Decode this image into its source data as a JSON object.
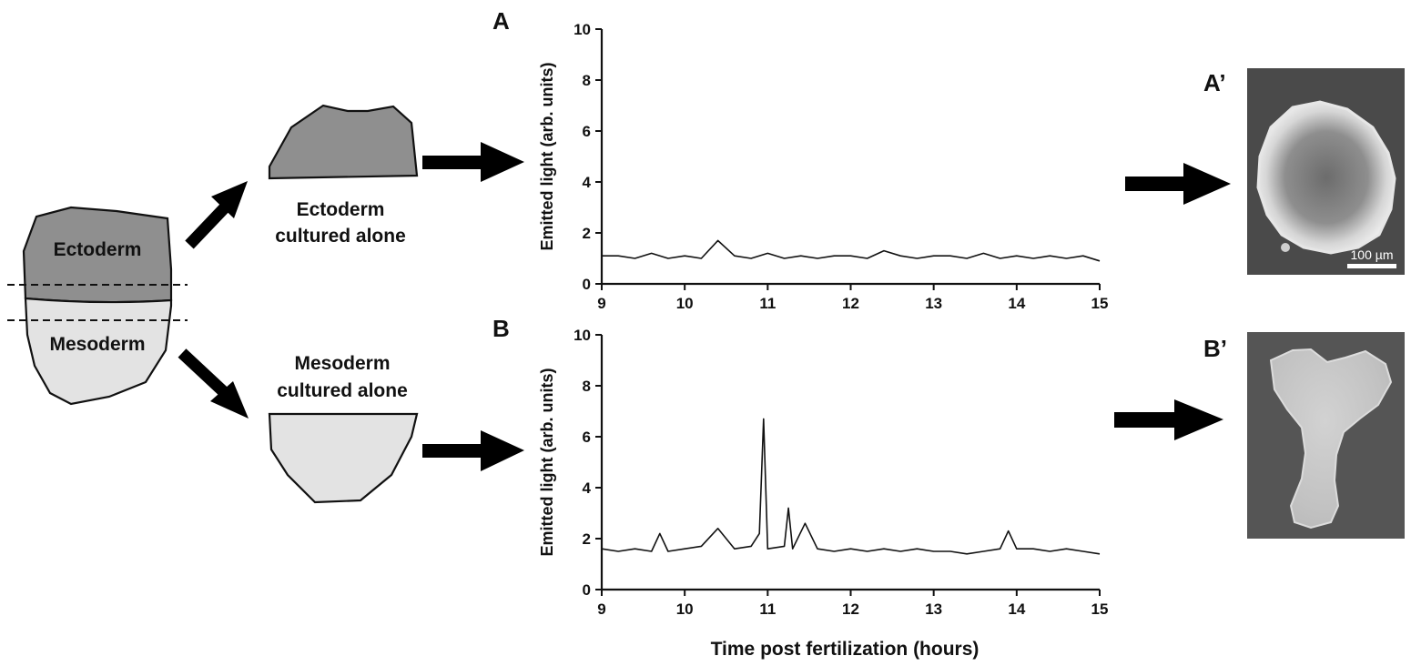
{
  "schematic": {
    "ectoderm_label": "Ectoderm",
    "mesoderm_label": "Mesoderm",
    "ectoderm_alone_line1": "Ectoderm",
    "ectoderm_alone_line2": "cultured alone",
    "mesoderm_alone_line1": "Mesoderm",
    "mesoderm_alone_line2": "cultured alone",
    "colors": {
      "ectoderm": "#8f8f8f",
      "mesoderm": "#e3e3e3",
      "arrow": "#000000"
    }
  },
  "panels": {
    "A": "A",
    "B": "B",
    "A_prime": "A’",
    "B_prime": "B’"
  },
  "images": {
    "A_prime": {
      "description_icon": "ectoderm-explant-micrograph",
      "scale_bar_label": "100 µm"
    },
    "B_prime": {
      "description_icon": "mesoderm-explant-micrograph"
    }
  },
  "chart_data": [
    {
      "type": "line",
      "panel": "A",
      "ylabel": "Emitted light (arb. units)",
      "xlabel": "",
      "xlim": [
        9,
        15
      ],
      "ylim": [
        0,
        10
      ],
      "xticks": [
        9,
        10,
        11,
        12,
        13,
        14,
        15
      ],
      "yticks": [
        0,
        2,
        4,
        6,
        8,
        10
      ],
      "grid": false,
      "color": "#111111",
      "series": [
        {
          "x": [
            9.0,
            9.2,
            9.4,
            9.6,
            9.8,
            10.0,
            10.2,
            10.4,
            10.6,
            10.8,
            11.0,
            11.2,
            11.4,
            11.6,
            11.8,
            12.0,
            12.2,
            12.4,
            12.6,
            12.8,
            13.0,
            13.2,
            13.4,
            13.6,
            13.8,
            14.0,
            14.2,
            14.4,
            14.6,
            14.8,
            15.0
          ],
          "values": [
            1.1,
            1.1,
            1.0,
            1.2,
            1.0,
            1.1,
            1.0,
            1.7,
            1.1,
            1.0,
            1.2,
            1.0,
            1.1,
            1.0,
            1.1,
            1.1,
            1.0,
            1.3,
            1.1,
            1.0,
            1.1,
            1.1,
            1.0,
            1.2,
            1.0,
            1.1,
            1.0,
            1.1,
            1.0,
            1.1,
            0.9
          ]
        }
      ]
    },
    {
      "type": "line",
      "panel": "B",
      "ylabel": "Emitted light (arb. units)",
      "xlabel": "Time post fertilization (hours)",
      "xlim": [
        9,
        15
      ],
      "ylim": [
        0,
        10
      ],
      "xticks": [
        9,
        10,
        11,
        12,
        13,
        14,
        15
      ],
      "yticks": [
        0,
        2,
        4,
        6,
        8,
        10
      ],
      "grid": false,
      "color": "#111111",
      "series": [
        {
          "x": [
            9.0,
            9.2,
            9.4,
            9.6,
            9.7,
            9.8,
            10.0,
            10.2,
            10.4,
            10.6,
            10.8,
            10.9,
            10.95,
            11.0,
            11.2,
            11.25,
            11.3,
            11.45,
            11.6,
            11.8,
            12.0,
            12.2,
            12.4,
            12.6,
            12.8,
            13.0,
            13.2,
            13.4,
            13.6,
            13.8,
            13.9,
            14.0,
            14.2,
            14.4,
            14.6,
            14.8,
            15.0
          ],
          "values": [
            1.6,
            1.5,
            1.6,
            1.5,
            2.2,
            1.5,
            1.6,
            1.7,
            2.4,
            1.6,
            1.7,
            2.2,
            6.7,
            1.6,
            1.7,
            3.2,
            1.6,
            2.6,
            1.6,
            1.5,
            1.6,
            1.5,
            1.6,
            1.5,
            1.6,
            1.5,
            1.5,
            1.4,
            1.5,
            1.6,
            2.3,
            1.6,
            1.6,
            1.5,
            1.6,
            1.5,
            1.4
          ]
        }
      ]
    }
  ]
}
